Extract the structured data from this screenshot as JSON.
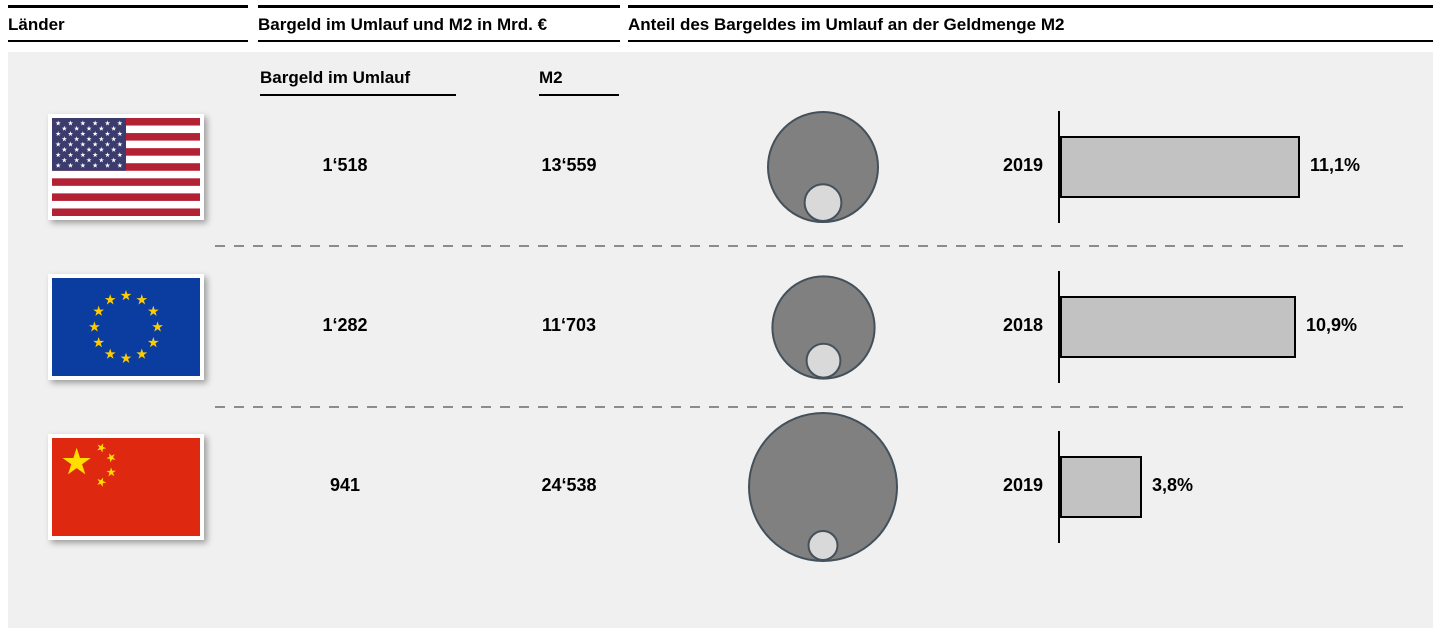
{
  "header": {
    "col_countries": "Länder",
    "col_money": "Bargeld im Umlauf und M2 in Mrd. €",
    "col_share": "Anteil des Bargeldes im Umlauf an der Geldmenge M2"
  },
  "subheaders": {
    "cash": "Bargeld im Umlauf",
    "m2": "M2"
  },
  "chart_data": {
    "type": "table",
    "title": "Bargeld im Umlauf und M2 in Mrd. € / Anteil des Bargeldes im Umlauf an der Geldmenge M2",
    "unit": "Mrd. €",
    "visual_encoding": "big gray circle area ∝ M2, small light circle area ∝ Bargeld im Umlauf; horizontal bar length ∝ share percent",
    "rows": [
      {
        "flag": "usa",
        "cash_in_circulation": 1518,
        "cash_label": "1‘518",
        "m2": 13559,
        "m2_label": "13‘559",
        "year": "2019",
        "share_pct": 11.1,
        "share_label": "11,1%"
      },
      {
        "flag": "eu",
        "cash_in_circulation": 1282,
        "cash_label": "1‘282",
        "m2": 11703,
        "m2_label": "11‘703",
        "year": "2018",
        "share_pct": 10.9,
        "share_label": "10,9%"
      },
      {
        "flag": "china",
        "cash_in_circulation": 941,
        "cash_label": "941",
        "m2": 24538,
        "m2_label": "24‘538",
        "year": "2019",
        "share_pct": 3.8,
        "share_label": "3,8%"
      }
    ]
  },
  "colors": {
    "panel_background": "#f0f0f0",
    "big_circle_fill": "#808080",
    "small_circle_fill": "#d9d9d9",
    "circle_border": "#44505a",
    "bar_fill": "#c2c2c2",
    "bar_border": "#000000",
    "dashed_separator": "#8c8c8c",
    "usa_red": "#B22234",
    "usa_navy": "#3C3B6E",
    "eu_blue": "#0B3DA0",
    "eu_star_gold": "#FFCC00",
    "china_red": "#DE2910",
    "china_star_yellow": "#FFDE00"
  }
}
